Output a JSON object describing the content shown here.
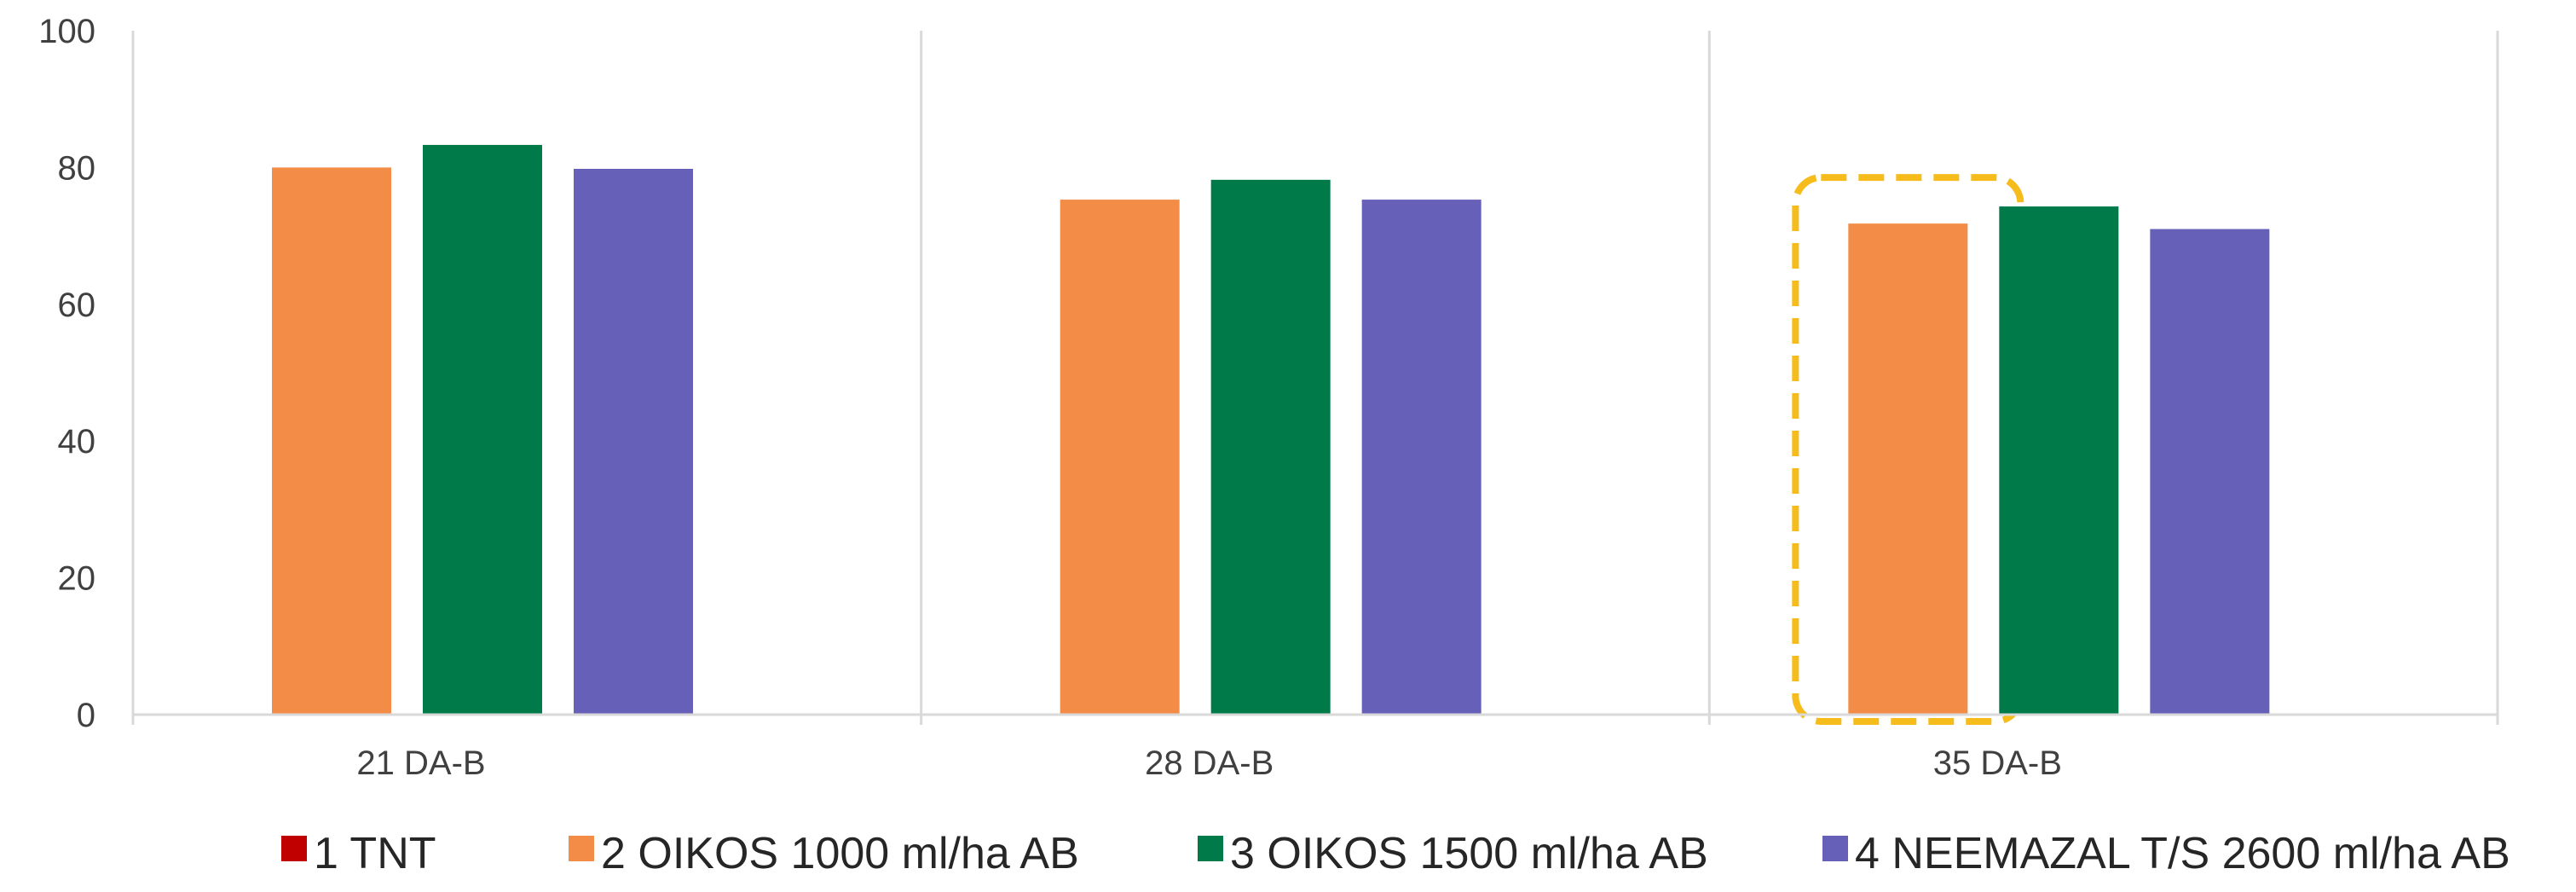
{
  "chart_data": {
    "type": "bar",
    "title": "",
    "xlabel": "",
    "ylabel": "",
    "ylim": [
      0,
      100
    ],
    "yticks": [
      "0",
      "20",
      "40",
      "60",
      "80",
      "100"
    ],
    "categories": [
      "21 DA-B",
      "28 DA-B",
      "35 DA-B"
    ],
    "series": [
      {
        "name": "1 TNT",
        "color": "#c00000",
        "values": [
          0,
          0,
          0
        ]
      },
      {
        "name": "2 OIKOS 1000 ml/ha AB",
        "color": "#f28c46",
        "values": [
          80,
          75.3,
          71.8
        ]
      },
      {
        "name": "3 OIKOS 1500 ml/ha AB",
        "color": "#007a48",
        "values": [
          83.3,
          78.2,
          74.3
        ]
      },
      {
        "name": "4 NEEMAZAL T/S 2600 ml/ha AB",
        "color": "#6660b8",
        "values": [
          79.8,
          75.3,
          71
        ]
      }
    ],
    "grid": "vertical category separators",
    "legend_position": "bottom",
    "highlight": {
      "category": "35 DA-B",
      "series": "2 OIKOS 1000 ml/ha AB",
      "style": "dashed",
      "color": "#f5bc1c"
    }
  }
}
